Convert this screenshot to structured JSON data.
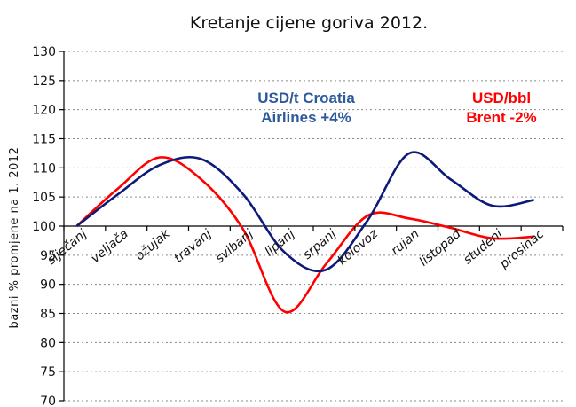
{
  "chart_data": {
    "type": "line",
    "title": "Kretanje cijene goriva 2012.",
    "ylabel": "bazni % promjene na 1. 2012",
    "xlabel": "",
    "ylim": [
      70,
      130
    ],
    "yticks": [
      70,
      75,
      80,
      85,
      90,
      95,
      100,
      105,
      110,
      115,
      120,
      125,
      130
    ],
    "grid": true,
    "legend": "none",
    "categories": [
      "siječanj",
      "veljača",
      "ožujak",
      "travanj",
      "svibanj",
      "lipanj",
      "srpanj",
      "kolovoz",
      "rujan",
      "listopad",
      "studeni",
      "prosinac"
    ],
    "series": [
      {
        "name": "USD/t Croatia Airlines +4%",
        "color": "#0d1a7a",
        "values": [
          100.0,
          105.5,
          110.5,
          111.5,
          105.5,
          95.5,
          92.5,
          101.0,
          112.5,
          108.0,
          103.5,
          104.5
        ]
      },
      {
        "name": "USD/bbl Brent -2%",
        "color": "#ff0000",
        "values": [
          100.0,
          106.5,
          111.8,
          108.0,
          99.5,
          85.3,
          93.5,
          101.8,
          101.3,
          99.7,
          97.9,
          98.2
        ]
      }
    ],
    "annotations": [
      {
        "lines": [
          "USD/t Croatia",
          "Airlines +4%"
        ],
        "color": "#2e5a9c"
      },
      {
        "lines": [
          "USD/bbl",
          "Brent -2%"
        ],
        "color": "#ff0000"
      }
    ]
  }
}
